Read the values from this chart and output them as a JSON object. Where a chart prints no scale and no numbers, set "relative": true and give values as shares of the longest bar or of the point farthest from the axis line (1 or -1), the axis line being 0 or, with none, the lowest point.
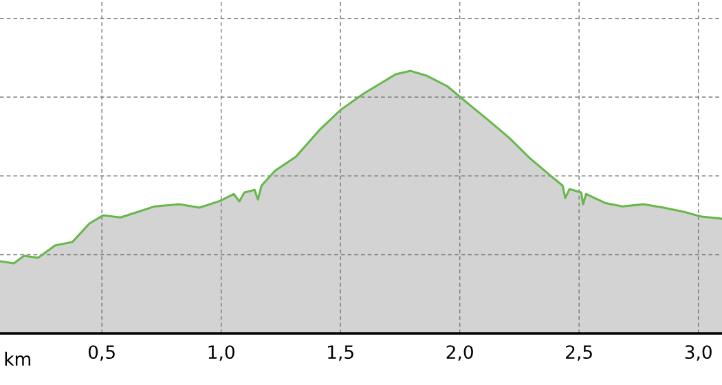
{
  "chart_data": {
    "type": "area",
    "relative": true,
    "xlabel": "km",
    "grid": true,
    "line_style": "solid",
    "xlim": [
      0.073,
      3.099
    ],
    "xticks": [
      {
        "value": 0.5,
        "label": "0,5"
      },
      {
        "value": 1.0,
        "label": "1,0"
      },
      {
        "value": 1.5,
        "label": "1,5"
      },
      {
        "value": 2.0,
        "label": "2,0"
      },
      {
        "value": 2.5,
        "label": "2,5"
      },
      {
        "value": 3.0,
        "label": "3,0"
      }
    ],
    "series": [
      {
        "color": "#66b84a",
        "x": [
          0.073,
          0.131,
          0.174,
          0.232,
          0.304,
          0.376,
          0.448,
          0.506,
          0.578,
          0.65,
          0.722,
          0.823,
          0.909,
          0.996,
          1.053,
          1.076,
          1.097,
          1.14,
          1.154,
          1.169,
          1.226,
          1.313,
          1.414,
          1.5,
          1.601,
          1.673,
          1.731,
          1.794,
          1.86,
          1.947,
          2.033,
          2.12,
          2.206,
          2.293,
          2.379,
          2.431,
          2.442,
          2.46,
          2.509,
          2.517,
          2.529,
          2.609,
          2.682,
          2.768,
          2.854,
          2.941,
          3.013,
          3.099
        ],
        "values": [
          0.275,
          0.267,
          0.296,
          0.288,
          0.335,
          0.348,
          0.419,
          0.45,
          0.442,
          0.463,
          0.484,
          0.492,
          0.479,
          0.505,
          0.531,
          0.503,
          0.537,
          0.547,
          0.51,
          0.563,
          0.62,
          0.673,
          0.777,
          0.851,
          0.916,
          0.955,
          0.987,
          1.0,
          0.982,
          0.942,
          0.877,
          0.812,
          0.746,
          0.668,
          0.602,
          0.563,
          0.516,
          0.55,
          0.537,
          0.492,
          0.531,
          0.497,
          0.484,
          0.492,
          0.479,
          0.463,
          0.445,
          0.437
        ]
      }
    ]
  }
}
